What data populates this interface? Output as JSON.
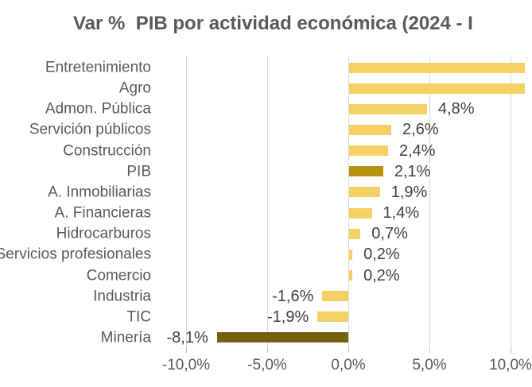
{
  "chart_data": {
    "type": "bar",
    "orientation": "horizontal",
    "title": "Var %  PIB por actividad económica (2024 - I",
    "title_truncated_at_right_edge": true,
    "legend": "none",
    "gridlines": "vertical",
    "x_axis": {
      "ticks": [
        {
          "label": "-10,0%",
          "value": -10
        },
        {
          "label": "-5,0%",
          "value": -5
        },
        {
          "label": "0,0%",
          "value": 0
        },
        {
          "label": "5,0%",
          "value": 5
        },
        {
          "label": "10,0%",
          "value": 10
        }
      ],
      "visible_range_pct": [
        -10.5,
        10.4
      ]
    },
    "rows": [
      {
        "category": "Entretenimiento",
        "value": null,
        "display": "",
        "color_key": "bar",
        "clipped_at_right_edge": true
      },
      {
        "category": "Agro",
        "value": null,
        "display": "",
        "color_key": "bar",
        "clipped_at_right_edge": true
      },
      {
        "category": "Admon. Pública",
        "value": 4.8,
        "display": "4,8%",
        "color_key": "bar"
      },
      {
        "category": "Servición públicos",
        "value": 2.6,
        "display": "2,6%",
        "color_key": "bar"
      },
      {
        "category": "Construcción",
        "value": 2.4,
        "display": "2,4%",
        "color_key": "bar"
      },
      {
        "category": "PIB",
        "value": 2.1,
        "display": "2,1%",
        "color_key": "pib_bar"
      },
      {
        "category": "A. Inmobiliarias",
        "value": 1.9,
        "display": "1,9%",
        "color_key": "bar"
      },
      {
        "category": "A. Financieras",
        "value": 1.4,
        "display": "1,4%",
        "color_key": "bar"
      },
      {
        "category": "Hidrocarburos",
        "value": 0.7,
        "display": "0,7%",
        "color_key": "bar"
      },
      {
        "category": "Servicios profesionales",
        "value": 0.2,
        "display": "0,2%",
        "color_key": "bar"
      },
      {
        "category": "Comercio",
        "value": 0.2,
        "display": "0,2%",
        "color_key": "bar"
      },
      {
        "category": "Industria",
        "value": -1.6,
        "display": "-1,6%",
        "color_key": "bar"
      },
      {
        "category": "TIC",
        "value": -1.9,
        "display": "-1,9%",
        "color_key": "bar"
      },
      {
        "category": "Minería",
        "value": -8.1,
        "display": "-8,1%",
        "color_key": "mineria_bar"
      }
    ],
    "colors": {
      "bar": "#F3D164",
      "pib_bar": "#B8910E",
      "mineria_bar": "#76620E",
      "gridline": "#D9D9D9",
      "tick": "#BFBFBF",
      "label_text": "#595959",
      "value_text": "#404040",
      "title_text": "#595959",
      "background": "#FFFFFF"
    }
  }
}
